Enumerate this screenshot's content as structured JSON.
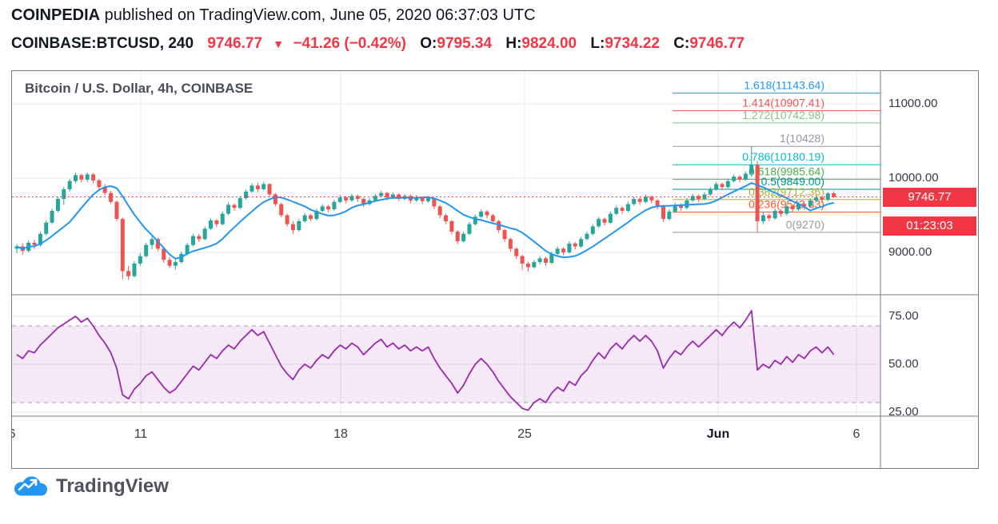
{
  "header": {
    "publisher": "COINPEDIA",
    "published_text": " published on TradingView.com, June 05, 2020 06:37:03 UTC",
    "symbol": "COINBASE:BTCUSD, 240",
    "last_price": "9746.77",
    "direction_arrow": "▼",
    "change": "−41.26 (−0.42%)",
    "ohlc": [
      {
        "label": "O:",
        "value": "9795.34"
      },
      {
        "label": "H:",
        "value": "9824.00"
      },
      {
        "label": "L:",
        "value": "9734.22"
      },
      {
        "label": "C:",
        "value": "9746.77"
      }
    ]
  },
  "badges": {
    "price": "9746.77",
    "countdown": "01:23:03"
  },
  "footer": {
    "logo_text": "TradingView"
  },
  "colors": {
    "grid": "#e7e9ed",
    "border": "#787b86",
    "up": "#26a69a",
    "down": "#ef5350",
    "ma": "#2196f3",
    "price_line": "#f23645",
    "badge_bg": "#f23645",
    "band_line": "#9b9fa8",
    "rsi_band_fill": "rgba(156,39,176,0.10)"
  },
  "chart_data": [
    {
      "type": "candlestick",
      "title": "Bitcoin / U.S. Dollar, 4h, COINBASE",
      "interval": "4h",
      "current_price": 9746.77,
      "ylim": [
        8430,
        11440
      ],
      "y_gridlines": [
        9000,
        10000,
        11000
      ],
      "y_tick_labels": [
        "11000.00",
        "10000.00",
        "9000.00"
      ],
      "x_tick_labels": [
        "6",
        "11",
        "18",
        "25",
        "Jun",
        "6"
      ],
      "ma": {
        "name": "MA",
        "period": 10
      },
      "fib_levels": [
        {
          "label": "1.618(11143.64)",
          "value": 11143.64,
          "color": "#2196f3"
        },
        {
          "label": "1.414(10907.41)",
          "value": 10907.41,
          "color": "#ef5350"
        },
        {
          "label": "1.272(10742.98)",
          "value": 10742.98,
          "color": "#81c784"
        },
        {
          "label": "1(10428)",
          "value": 10428,
          "color": "#9598a1"
        },
        {
          "label": "0.786(10180.19)",
          "value": 10180.19,
          "color": "#00bcd4"
        },
        {
          "label": "0.618(9985.64)",
          "value": 9985.64,
          "color": "#4caf50"
        },
        {
          "label": "0.5(9849.00)",
          "value": 9849.0,
          "color": "#009688"
        },
        {
          "label": "0.382(9712.36)",
          "value": 9712.36,
          "color": "#afb42b"
        },
        {
          "label": "0.236(9543.33)",
          "value": 9543.33,
          "color": "#ff5722"
        },
        {
          "label": "0(9270)",
          "value": 9270,
          "color": "#9598a1"
        }
      ],
      "candles": [
        [
          9050,
          9110,
          8990,
          9080
        ],
        [
          9080,
          9120,
          8970,
          9020
        ],
        [
          9020,
          9160,
          9000,
          9130
        ],
        [
          9130,
          9170,
          9050,
          9100
        ],
        [
          9100,
          9280,
          9080,
          9250
        ],
        [
          9250,
          9430,
          9230,
          9400
        ],
        [
          9400,
          9590,
          9380,
          9560
        ],
        [
          9560,
          9750,
          9540,
          9720
        ],
        [
          9720,
          9880,
          9640,
          9850
        ],
        [
          9850,
          9990,
          9820,
          9960
        ],
        [
          9960,
          10070,
          9930,
          10040
        ],
        [
          10040,
          10060,
          9940,
          9980
        ],
        [
          9980,
          10075,
          9950,
          10050
        ],
        [
          10050,
          10070,
          9930,
          9970
        ],
        [
          9970,
          9990,
          9850,
          9880
        ],
        [
          9880,
          9920,
          9770,
          9800
        ],
        [
          9800,
          9830,
          9650,
          9680
        ],
        [
          9680,
          9700,
          9420,
          9450
        ],
        [
          9450,
          9470,
          8640,
          8750
        ],
        [
          8750,
          8820,
          8630,
          8680
        ],
        [
          8680,
          8880,
          8660,
          8850
        ],
        [
          8850,
          8990,
          8820,
          8950
        ],
        [
          8950,
          9130,
          8930,
          9100
        ],
        [
          9100,
          9210,
          9040,
          9180
        ],
        [
          9180,
          9200,
          9020,
          9050
        ],
        [
          9050,
          9080,
          8860,
          8900
        ],
        [
          8900,
          8940,
          8790,
          8820
        ],
        [
          8820,
          8900,
          8770,
          8870
        ],
        [
          8870,
          9010,
          8850,
          8980
        ],
        [
          8980,
          9130,
          8960,
          9100
        ],
        [
          9100,
          9250,
          9080,
          9220
        ],
        [
          9220,
          9250,
          9140,
          9180
        ],
        [
          9180,
          9350,
          9160,
          9320
        ],
        [
          9320,
          9460,
          9300,
          9430
        ],
        [
          9430,
          9450,
          9340,
          9380
        ],
        [
          9380,
          9550,
          9360,
          9520
        ],
        [
          9520,
          9670,
          9500,
          9640
        ],
        [
          9640,
          9660,
          9560,
          9600
        ],
        [
          9600,
          9760,
          9580,
          9730
        ],
        [
          9730,
          9850,
          9710,
          9820
        ],
        [
          9820,
          9930,
          9800,
          9900
        ],
        [
          9900,
          9940,
          9810,
          9850
        ],
        [
          9850,
          9950,
          9830,
          9920
        ],
        [
          9920,
          9930,
          9750,
          9780
        ],
        [
          9780,
          9800,
          9620,
          9650
        ],
        [
          9650,
          9670,
          9470,
          9500
        ],
        [
          9500,
          9520,
          9350,
          9380
        ],
        [
          9380,
          9420,
          9250,
          9300
        ],
        [
          9300,
          9450,
          9280,
          9420
        ],
        [
          9420,
          9530,
          9400,
          9500
        ],
        [
          9500,
          9520,
          9420,
          9450
        ],
        [
          9450,
          9590,
          9430,
          9560
        ],
        [
          9560,
          9650,
          9540,
          9620
        ],
        [
          9620,
          9640,
          9540,
          9580
        ],
        [
          9580,
          9710,
          9560,
          9680
        ],
        [
          9680,
          9770,
          9660,
          9740
        ],
        [
          9740,
          9760,
          9660,
          9700
        ],
        [
          9700,
          9790,
          9680,
          9760
        ],
        [
          9760,
          9780,
          9680,
          9720
        ],
        [
          9720,
          9740,
          9610,
          9650
        ],
        [
          9650,
          9730,
          9630,
          9700
        ],
        [
          9700,
          9790,
          9680,
          9760
        ],
        [
          9760,
          9830,
          9740,
          9800
        ],
        [
          9800,
          9820,
          9700,
          9740
        ],
        [
          9740,
          9810,
          9720,
          9780
        ],
        [
          9780,
          9800,
          9690,
          9720
        ],
        [
          9720,
          9790,
          9700,
          9760
        ],
        [
          9760,
          9780,
          9660,
          9700
        ],
        [
          9700,
          9770,
          9680,
          9740
        ],
        [
          9740,
          9750,
          9650,
          9690
        ],
        [
          9690,
          9760,
          9670,
          9730
        ],
        [
          9730,
          9740,
          9580,
          9620
        ],
        [
          9620,
          9640,
          9460,
          9500
        ],
        [
          9500,
          9520,
          9380,
          9420
        ],
        [
          9420,
          9440,
          9240,
          9280
        ],
        [
          9280,
          9300,
          9110,
          9150
        ],
        [
          9150,
          9280,
          9130,
          9250
        ],
        [
          9250,
          9410,
          9230,
          9380
        ],
        [
          9380,
          9510,
          9360,
          9480
        ],
        [
          9480,
          9580,
          9460,
          9550
        ],
        [
          9550,
          9570,
          9460,
          9500
        ],
        [
          9500,
          9520,
          9380,
          9420
        ],
        [
          9420,
          9440,
          9260,
          9300
        ],
        [
          9300,
          9320,
          9140,
          9180
        ],
        [
          9180,
          9200,
          9010,
          9050
        ],
        [
          9050,
          9070,
          8910,
          8950
        ],
        [
          8950,
          8970,
          8760,
          8850
        ],
        [
          8850,
          8880,
          8740,
          8800
        ],
        [
          8800,
          8900,
          8780,
          8870
        ],
        [
          8870,
          8950,
          8840,
          8920
        ],
        [
          8920,
          8940,
          8820,
          8860
        ],
        [
          8860,
          9010,
          8840,
          8980
        ],
        [
          8980,
          9080,
          8960,
          9050
        ],
        [
          9050,
          9070,
          8960,
          9000
        ],
        [
          9000,
          9150,
          8980,
          9120
        ],
        [
          9120,
          9140,
          9040,
          9080
        ],
        [
          9080,
          9210,
          9060,
          9180
        ],
        [
          9180,
          9280,
          9160,
          9250
        ],
        [
          9250,
          9380,
          9230,
          9350
        ],
        [
          9350,
          9480,
          9330,
          9450
        ],
        [
          9450,
          9470,
          9360,
          9400
        ],
        [
          9400,
          9550,
          9380,
          9520
        ],
        [
          9520,
          9630,
          9500,
          9600
        ],
        [
          9600,
          9620,
          9520,
          9560
        ],
        [
          9560,
          9680,
          9540,
          9650
        ],
        [
          9650,
          9750,
          9630,
          9720
        ],
        [
          9720,
          9740,
          9640,
          9680
        ],
        [
          9680,
          9780,
          9660,
          9750
        ],
        [
          9750,
          9770,
          9660,
          9700
        ],
        [
          9700,
          9720,
          9580,
          9620
        ],
        [
          9620,
          9640,
          9410,
          9450
        ],
        [
          9450,
          9580,
          9430,
          9550
        ],
        [
          9550,
          9670,
          9530,
          9640
        ],
        [
          9640,
          9660,
          9560,
          9600
        ],
        [
          9600,
          9730,
          9580,
          9700
        ],
        [
          9700,
          9790,
          9680,
          9760
        ],
        [
          9760,
          9780,
          9680,
          9720
        ],
        [
          9720,
          9810,
          9700,
          9780
        ],
        [
          9780,
          9880,
          9760,
          9850
        ],
        [
          9850,
          9950,
          9830,
          9920
        ],
        [
          9920,
          9940,
          9840,
          9880
        ],
        [
          9880,
          9990,
          9860,
          9960
        ],
        [
          9960,
          10050,
          9940,
          10020
        ],
        [
          10020,
          10040,
          9940,
          9980
        ],
        [
          9980,
          10090,
          9960,
          10060
        ],
        [
          10060,
          10428,
          10020,
          10180
        ],
        [
          10180,
          10230,
          9270,
          9420
        ],
        [
          9420,
          9540,
          9380,
          9500
        ],
        [
          9500,
          9520,
          9420,
          9460
        ],
        [
          9460,
          9590,
          9440,
          9560
        ],
        [
          9560,
          9580,
          9480,
          9520
        ],
        [
          9520,
          9650,
          9500,
          9620
        ],
        [
          9620,
          9640,
          9540,
          9580
        ],
        [
          9580,
          9680,
          9560,
          9650
        ],
        [
          9650,
          9670,
          9570,
          9620
        ],
        [
          9620,
          9730,
          9600,
          9700
        ],
        [
          9700,
          9770,
          9680,
          9740
        ],
        [
          9740,
          9760,
          9670,
          9710
        ],
        [
          9710,
          9820,
          9690,
          9795
        ],
        [
          9795.34,
          9824,
          9734.22,
          9746.77
        ]
      ]
    },
    {
      "type": "line",
      "name": "RSI",
      "color": "#9c27b0",
      "band": [
        30,
        70
      ],
      "ylim": [
        23,
        86
      ],
      "y_ticks": [
        75,
        50,
        25
      ],
      "y_tick_labels": [
        "75.00",
        "50.00",
        "25.00"
      ],
      "values": [
        55,
        53,
        57,
        56,
        60,
        63,
        66,
        69,
        71,
        73,
        75,
        72,
        74,
        70,
        65,
        61,
        56,
        48,
        34,
        32,
        37,
        40,
        44,
        46,
        42,
        38,
        35,
        37,
        41,
        45,
        49,
        47,
        51,
        55,
        53,
        57,
        60,
        58,
        62,
        65,
        68,
        65,
        67,
        61,
        55,
        49,
        45,
        42,
        47,
        50,
        48,
        52,
        55,
        53,
        57,
        60,
        58,
        61,
        59,
        55,
        58,
        61,
        63,
        59,
        61,
        58,
        60,
        57,
        59,
        57,
        59,
        53,
        48,
        44,
        40,
        35,
        39,
        45,
        50,
        53,
        50,
        46,
        41,
        37,
        33,
        30,
        27,
        26,
        30,
        32,
        30,
        35,
        38,
        36,
        41,
        39,
        44,
        47,
        52,
        56,
        53,
        58,
        61,
        58,
        62,
        65,
        62,
        65,
        62,
        57,
        48,
        53,
        57,
        55,
        59,
        62,
        59,
        62,
        65,
        68,
        65,
        69,
        72,
        69,
        73,
        78,
        47,
        50,
        48,
        52,
        50,
        54,
        51,
        55,
        53,
        57,
        59,
        56,
        59,
        55
      ]
    }
  ]
}
